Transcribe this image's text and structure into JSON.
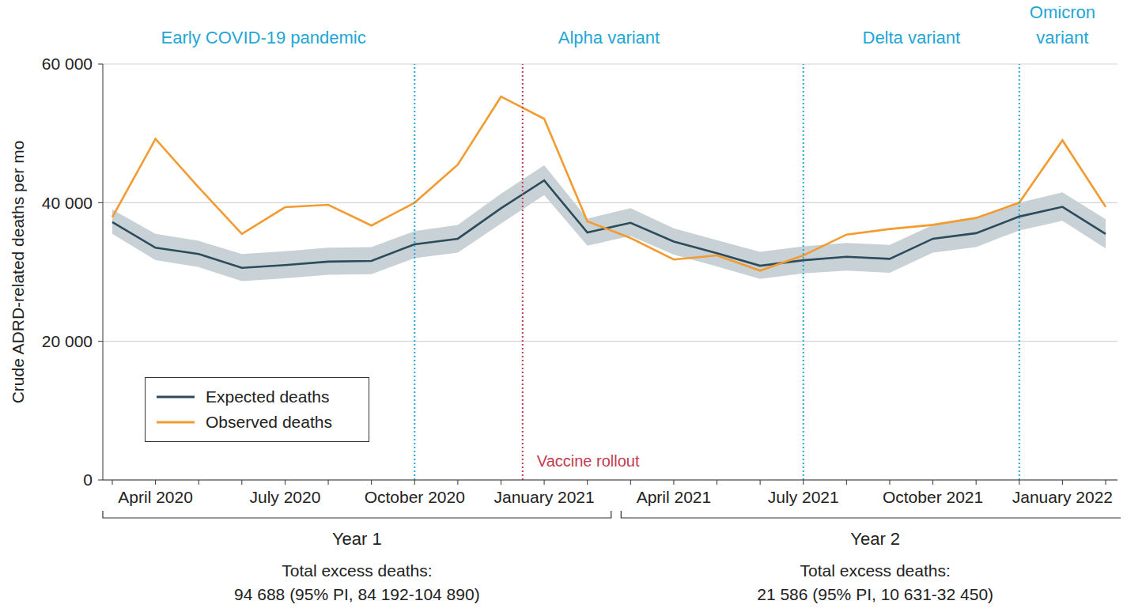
{
  "chart_data": {
    "type": "line",
    "y_label": "Crude ADRD-related deaths per mo",
    "categories": [
      null,
      "April 2020",
      null,
      null,
      "July 2020",
      null,
      null,
      "October 2020",
      null,
      null,
      "January 2021",
      null,
      null,
      "April 2021",
      null,
      null,
      "July 2021",
      null,
      null,
      "October 2021",
      null,
      null,
      "January 2022",
      null
    ],
    "series": [
      {
        "name": "Expected deaths",
        "color": "#2c4b5b",
        "marker": "none",
        "line_style": "solid",
        "values": [
          37200,
          33500,
          32600,
          30600,
          31000,
          31500,
          31600,
          34000,
          34800,
          39200,
          43200,
          35700,
          37100,
          34400,
          32700,
          30900,
          31700,
          32200,
          31900,
          34800,
          35600,
          38000,
          39400,
          35500
        ]
      },
      {
        "name": "Observed deaths",
        "color": "#f29b30",
        "marker": "none",
        "line_style": "solid",
        "values": [
          37900,
          49200,
          42200,
          35500,
          39350,
          39700,
          36700,
          40000,
          45500,
          55300,
          52100,
          37300,
          34900,
          31800,
          32400,
          30200,
          32400,
          35400,
          36200,
          36800,
          37800,
          40000,
          49000,
          39400
        ]
      }
    ],
    "prediction_interval": {
      "color": "#c8d2d6",
      "lower": [
        35500,
        31700,
        30700,
        28700,
        29100,
        29600,
        29700,
        32000,
        32800,
        37000,
        41100,
        33800,
        35200,
        32500,
        30800,
        29000,
        29800,
        30200,
        29900,
        32800,
        33600,
        36000,
        37400,
        33400
      ],
      "upper": [
        39000,
        35500,
        34500,
        32600,
        33000,
        33500,
        33600,
        35900,
        36800,
        41300,
        45400,
        37700,
        39200,
        36300,
        34600,
        32900,
        33700,
        34200,
        33900,
        36800,
        37700,
        40000,
        41500,
        37600
      ]
    },
    "ylim": [
      0,
      60000
    ],
    "yticks": [
      0,
      {
        "value": 20000,
        "label": "20 000"
      },
      {
        "value": 40000,
        "label": "40 000"
      },
      {
        "value": 60000,
        "label": "60 000"
      }
    ],
    "grid": true,
    "legend": "left",
    "phases": [
      {
        "label": "Early COVID-19 pandemic",
        "start": 0,
        "end": 7
      },
      {
        "label": "Alpha variant",
        "start": 7,
        "end": 16
      },
      {
        "label": "Delta variant",
        "start": 16,
        "end": 21
      },
      {
        "label": "Omicron variant",
        "start": 21,
        "end": 23
      }
    ],
    "vaccine_rollout": {
      "label": "Vaccine rollout",
      "x": 9.5
    },
    "year_groups": [
      {
        "label": "Year 1",
        "start": 0,
        "end": 11,
        "text": [
          "Total excess deaths:",
          "94 688 (95% PI, 84 192-104 890)"
        ]
      },
      {
        "label": "Year 2",
        "start": 12,
        "end": 23,
        "text": [
          "Total excess deaths:",
          "21 586 (95% PI, 10 631-32 450)"
        ]
      }
    ]
  }
}
